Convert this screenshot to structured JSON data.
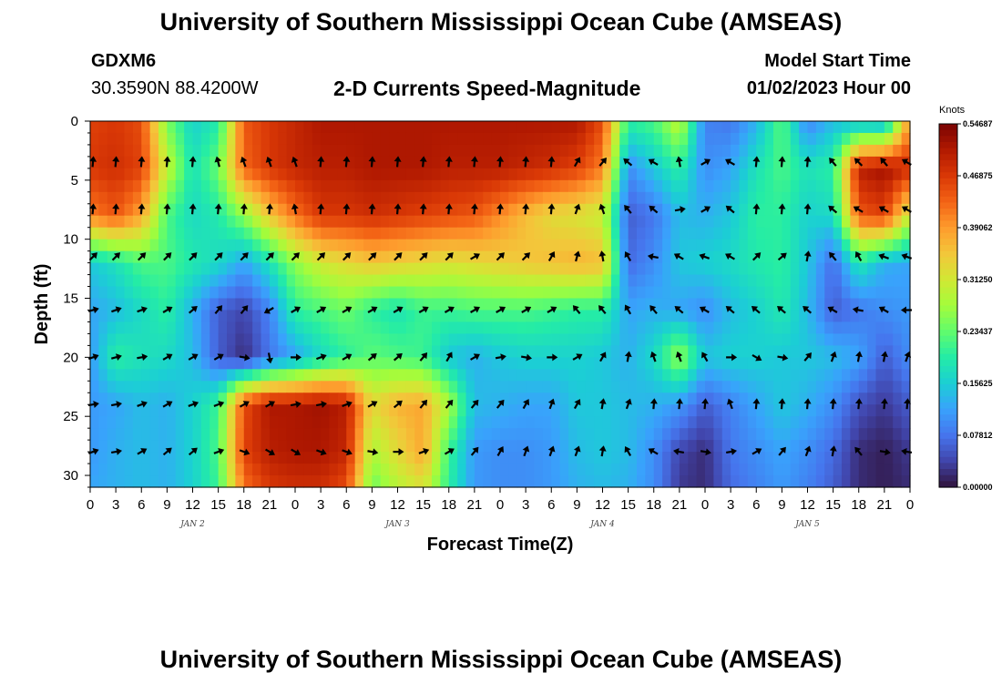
{
  "header": {
    "title": "University of Southern Mississippi Ocean Cube (AMSEAS)",
    "station": "GDXM6",
    "coords": "30.3590N  88.4200W",
    "subtitle": "2-D Currents Speed-Magnitude",
    "model_start_label": "Model Start Time",
    "model_start_value": "01/02/2023 Hour 00",
    "footer_title": "University of Southern Mississippi Ocean Cube (AMSEAS)"
  },
  "colors": {
    "palette": [
      "#30123b",
      "#4145ab",
      "#4675ed",
      "#39a2fc",
      "#1bcfd4",
      "#24eca6",
      "#61fc6c",
      "#a4fc3b",
      "#d1e834",
      "#f3c63a",
      "#fe9b2d",
      "#f36315",
      "#d93806",
      "#b11901",
      "#7a0403"
    ],
    "arrow": "#000000"
  },
  "chart_data": {
    "type": "heatmap",
    "title": "2-D Currents Speed-Magnitude",
    "xlabel": "Forecast Time(Z)",
    "ylabel": "Depth (ft)",
    "x_tick_labels": [
      "0",
      "3",
      "6",
      "9",
      "12",
      "15",
      "18",
      "21",
      "0",
      "3",
      "6",
      "9",
      "12",
      "15",
      "18",
      "21",
      "0",
      "3",
      "6",
      "9",
      "12",
      "15",
      "18",
      "21",
      "0",
      "3",
      "6",
      "9",
      "12",
      "15",
      "18",
      "21",
      "0"
    ],
    "day_labels": [
      {
        "label": "JAN 2",
        "hour": 12
      },
      {
        "label": "JAN 3",
        "hour": 36
      },
      {
        "label": "JAN 4",
        "hour": 60
      },
      {
        "label": "JAN 5",
        "hour": 84
      }
    ],
    "x_range_hours": [
      0,
      96
    ],
    "y_ticks": [
      0,
      5,
      10,
      15,
      20,
      25,
      30
    ],
    "y_range_ft": [
      0,
      31
    ],
    "colorbar": {
      "unit": "Knots",
      "min": 0.0,
      "max": 0.546875,
      "tick_labels": [
        "0.00000",
        "0.07812",
        "0.15625",
        "0.23437",
        "0.31250",
        "0.39062",
        "0.46875",
        "0.54687"
      ]
    },
    "anchor_hours": [
      0,
      3,
      6,
      9,
      12,
      15,
      18,
      21,
      24,
      27,
      30,
      33,
      36,
      39,
      42,
      45,
      48,
      51,
      54,
      57,
      60,
      63,
      66,
      69,
      72,
      75,
      78,
      81,
      84,
      87,
      90,
      93,
      96
    ],
    "anchor_depths_ft": [
      0,
      4,
      8,
      12,
      16,
      20,
      24,
      28,
      31
    ],
    "speed_knots": [
      [
        0.46,
        0.47,
        0.45,
        0.25,
        0.16,
        0.19,
        0.44,
        0.47,
        0.49,
        0.51,
        0.51,
        0.51,
        0.51,
        0.51,
        0.51,
        0.51,
        0.51,
        0.51,
        0.51,
        0.51,
        0.45,
        0.2,
        0.22,
        0.3,
        0.09,
        0.08,
        0.13,
        0.23,
        0.09,
        0.14,
        0.13,
        0.12,
        0.4
      ],
      [
        0.47,
        0.48,
        0.46,
        0.3,
        0.18,
        0.24,
        0.43,
        0.47,
        0.49,
        0.5,
        0.5,
        0.51,
        0.51,
        0.51,
        0.5,
        0.5,
        0.5,
        0.49,
        0.48,
        0.46,
        0.41,
        0.1,
        0.15,
        0.2,
        0.1,
        0.12,
        0.18,
        0.22,
        0.18,
        0.2,
        0.5,
        0.52,
        0.48
      ],
      [
        0.41,
        0.44,
        0.38,
        0.22,
        0.17,
        0.19,
        0.26,
        0.35,
        0.42,
        0.47,
        0.47,
        0.48,
        0.47,
        0.46,
        0.45,
        0.44,
        0.4,
        0.36,
        0.33,
        0.32,
        0.3,
        0.06,
        0.08,
        0.14,
        0.13,
        0.15,
        0.2,
        0.2,
        0.16,
        0.17,
        0.44,
        0.46,
        0.3
      ],
      [
        0.15,
        0.18,
        0.22,
        0.22,
        0.19,
        0.17,
        0.12,
        0.18,
        0.26,
        0.31,
        0.33,
        0.35,
        0.34,
        0.33,
        0.32,
        0.33,
        0.34,
        0.35,
        0.36,
        0.37,
        0.36,
        0.07,
        0.1,
        0.15,
        0.16,
        0.17,
        0.19,
        0.2,
        0.15,
        0.07,
        0.19,
        0.13,
        0.12
      ],
      [
        0.12,
        0.14,
        0.17,
        0.2,
        0.13,
        0.06,
        0.04,
        0.09,
        0.2,
        0.22,
        0.24,
        0.2,
        0.18,
        0.21,
        0.21,
        0.22,
        0.22,
        0.22,
        0.21,
        0.2,
        0.2,
        0.12,
        0.13,
        0.12,
        0.1,
        0.14,
        0.16,
        0.19,
        0.14,
        0.06,
        0.08,
        0.1,
        0.11
      ],
      [
        0.11,
        0.2,
        0.18,
        0.17,
        0.14,
        0.06,
        0.02,
        0.08,
        0.12,
        0.17,
        0.2,
        0.23,
        0.22,
        0.21,
        0.15,
        0.13,
        0.15,
        0.16,
        0.16,
        0.16,
        0.15,
        0.13,
        0.17,
        0.27,
        0.15,
        0.16,
        0.16,
        0.15,
        0.15,
        0.14,
        0.12,
        0.06,
        0.1
      ],
      [
        0.11,
        0.12,
        0.14,
        0.13,
        0.16,
        0.21,
        0.45,
        0.51,
        0.51,
        0.52,
        0.5,
        0.33,
        0.37,
        0.38,
        0.28,
        0.14,
        0.13,
        0.12,
        0.12,
        0.15,
        0.15,
        0.14,
        0.13,
        0.11,
        0.06,
        0.09,
        0.12,
        0.15,
        0.13,
        0.1,
        0.05,
        0.03,
        0.06
      ],
      [
        0.11,
        0.13,
        0.14,
        0.13,
        0.16,
        0.22,
        0.46,
        0.5,
        0.51,
        0.51,
        0.49,
        0.28,
        0.33,
        0.38,
        0.21,
        0.11,
        0.1,
        0.1,
        0.11,
        0.14,
        0.15,
        0.14,
        0.1,
        0.04,
        0.02,
        0.08,
        0.1,
        0.12,
        0.1,
        0.07,
        0.02,
        0.01,
        0.03
      ],
      [
        0.12,
        0.13,
        0.14,
        0.13,
        0.16,
        0.21,
        0.42,
        0.47,
        0.48,
        0.48,
        0.45,
        0.24,
        0.29,
        0.32,
        0.2,
        0.11,
        0.1,
        0.1,
        0.11,
        0.13,
        0.14,
        0.13,
        0.1,
        0.03,
        0.02,
        0.07,
        0.09,
        0.11,
        0.09,
        0.06,
        0.02,
        0.01,
        0.02
      ]
    ],
    "arrow_rows_depth_ft": [
      3.5,
      7.5,
      11.5,
      16,
      20,
      24,
      28
    ],
    "arrow_cols_hours": [
      0,
      3,
      6,
      9,
      12,
      15,
      18,
      21,
      24,
      27,
      30,
      33,
      36,
      39,
      42,
      45,
      48,
      51,
      54,
      57,
      60,
      63,
      66,
      69,
      72,
      75,
      78,
      81,
      84,
      87,
      90,
      93,
      96
    ],
    "current_direction_deg": [
      [
        5,
        5,
        5,
        5,
        5,
        -15,
        -20,
        -20,
        -20,
        5,
        5,
        5,
        5,
        5,
        5,
        5,
        5,
        5,
        5,
        30,
        40,
        -50,
        -60,
        -10,
        60,
        -60,
        5,
        5,
        5,
        -40,
        -45,
        -40,
        -60
      ],
      [
        5,
        5,
        5,
        5,
        5,
        5,
        5,
        5,
        -10,
        5,
        5,
        5,
        5,
        5,
        5,
        5,
        5,
        5,
        5,
        20,
        -20,
        -40,
        -50,
        80,
        60,
        -50,
        5,
        5,
        5,
        -50,
        -60,
        -60,
        -60
      ],
      [
        45,
        45,
        45,
        45,
        45,
        45,
        45,
        45,
        45,
        45,
        45,
        45,
        45,
        45,
        45,
        60,
        45,
        45,
        30,
        15,
        -10,
        -30,
        -80,
        -60,
        -70,
        -60,
        45,
        50,
        10,
        -40,
        -30,
        -70,
        -70
      ],
      [
        75,
        70,
        70,
        60,
        50,
        40,
        40,
        -120,
        60,
        60,
        60,
        60,
        60,
        60,
        60,
        60,
        60,
        60,
        60,
        -40,
        -40,
        -30,
        -40,
        -50,
        -60,
        -50,
        -50,
        -50,
        -50,
        -60,
        -80,
        -60,
        -90
      ],
      [
        70,
        75,
        80,
        60,
        60,
        60,
        100,
        170,
        90,
        70,
        60,
        50,
        50,
        40,
        30,
        60,
        80,
        100,
        90,
        60,
        30,
        10,
        -20,
        -20,
        -30,
        90,
        120,
        100,
        40,
        20,
        10,
        10,
        20
      ],
      [
        80,
        80,
        70,
        60,
        70,
        70,
        60,
        60,
        80,
        80,
        70,
        60,
        50,
        40,
        40,
        40,
        40,
        30,
        20,
        30,
        10,
        20,
        5,
        5,
        5,
        -20,
        5,
        5,
        5,
        5,
        5,
        5,
        5
      ],
      [
        70,
        80,
        60,
        50,
        50,
        70,
        110,
        120,
        120,
        110,
        110,
        100,
        90,
        70,
        60,
        40,
        30,
        20,
        20,
        20,
        10,
        -30,
        -60,
        -80,
        100,
        80,
        60,
        40,
        20,
        10,
        -40,
        100,
        -80
      ]
    ]
  }
}
